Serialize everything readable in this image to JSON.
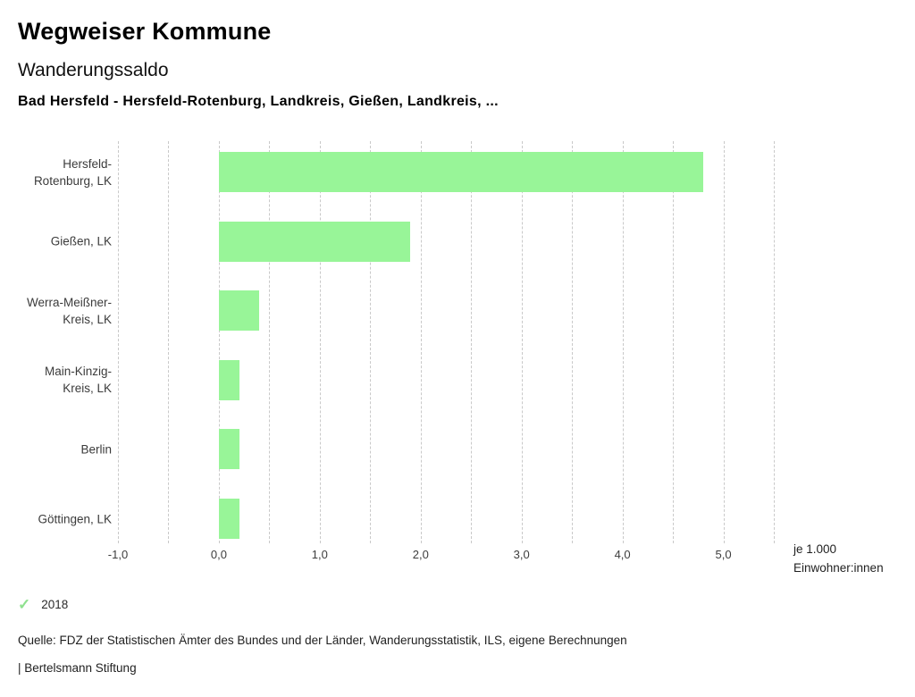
{
  "header": {
    "title": "Wegweiser Kommune",
    "subtitle": "Wanderungssaldo",
    "selection": "Bad Hersfeld - Hersfeld-Rotenburg, Landkreis, Gießen, Landkreis, ..."
  },
  "chart_data": {
    "type": "bar",
    "orientation": "horizontal",
    "title": "Wanderungssaldo",
    "xlabel": "je 1.000 Einwohner:innen",
    "categories": [
      "Hersfeld-Rotenburg, LK",
      "Gießen, LK",
      "Werra-Meißner-Kreis, LK",
      "Main-Kinzig-Kreis, LK",
      "Berlin",
      "Göttingen, LK"
    ],
    "series": [
      {
        "name": "2018",
        "values": [
          4.8,
          1.9,
          0.4,
          0.2,
          0.2,
          0.2
        ]
      }
    ],
    "xlim": [
      -1.0,
      5.5
    ],
    "gridline_step": 0.5,
    "grid": true,
    "x_ticks": [
      {
        "value": -1,
        "label": "-1,0"
      },
      {
        "value": 0,
        "label": "0,0"
      },
      {
        "value": 1,
        "label": "1,0"
      },
      {
        "value": 2,
        "label": "2,0"
      },
      {
        "value": 3,
        "label": "3,0"
      },
      {
        "value": 4,
        "label": "4,0"
      },
      {
        "value": 5,
        "label": "5,0"
      }
    ],
    "bar_start_value": 0,
    "bar_color": "#98f598",
    "gridline_color": "#c9c9c9",
    "legend_position": "bottom"
  },
  "axis_unit": {
    "line1": "je 1.000",
    "line2": "Einwohner:innen"
  },
  "legend": {
    "symbol": "✓",
    "symbol_color": "#8fe18f",
    "label": "2018"
  },
  "footer": {
    "source": "Quelle: FDZ der Statistischen Ämter des Bundes und der Länder, Wanderungsstatistik, ILS, eigene Berechnungen",
    "attribution": "| Bertelsmann Stiftung"
  }
}
